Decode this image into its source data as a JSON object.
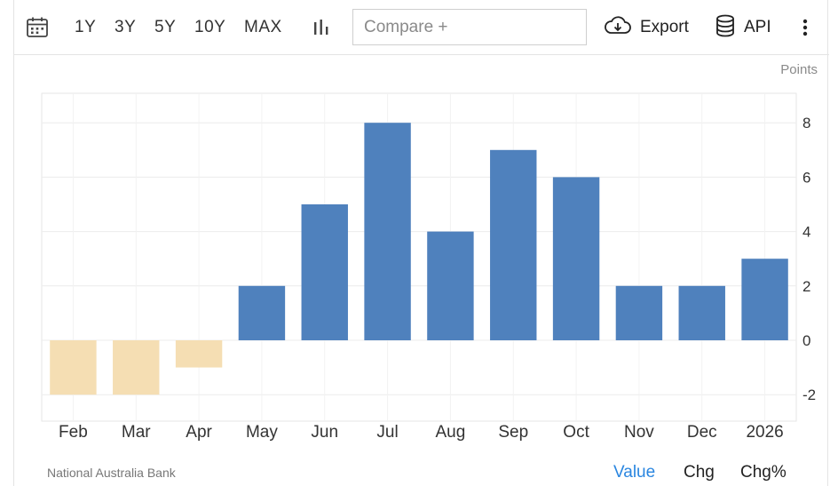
{
  "toolbar": {
    "ranges": [
      "1Y",
      "3Y",
      "5Y",
      "10Y",
      "MAX"
    ],
    "compare_placeholder": "Compare +",
    "export_label": "Export",
    "api_label": "API"
  },
  "footer": {
    "source": "National Australia Bank",
    "tabs": [
      "Value",
      "Chg",
      "Chg%"
    ],
    "active_tab": "Value"
  },
  "colors": {
    "positive": "#4f81bd",
    "negative": "#f5deb3",
    "active_tab": "#2a86e0"
  },
  "chart_data": {
    "type": "bar",
    "unit": "Points",
    "categories": [
      "Feb",
      "Mar",
      "Apr",
      "May",
      "Jun",
      "Jul",
      "Aug",
      "Sep",
      "Oct",
      "Nov",
      "Dec",
      "2026"
    ],
    "values": [
      -2,
      -2,
      -1,
      2,
      5,
      8,
      4,
      7,
      6,
      2,
      2,
      3
    ],
    "y_ticks": [
      8,
      6,
      4,
      2,
      0,
      -2
    ],
    "ylim": [
      -3,
      9
    ],
    "y_axis_side": "right",
    "grid": true
  }
}
